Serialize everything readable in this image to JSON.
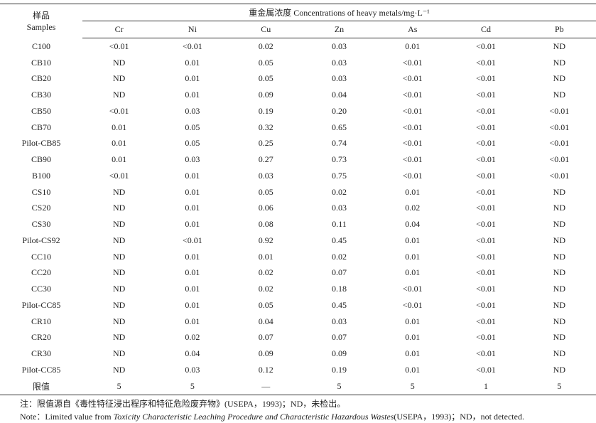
{
  "table": {
    "sample_header": "样品",
    "sample_header_en": "Samples",
    "group_header": "重金属浓度 Concentrations of heavy metals/mg·L⁻¹",
    "columns": [
      "Cr",
      "Ni",
      "Cu",
      "Zn",
      "As",
      "Cd",
      "Pb"
    ],
    "rows": [
      [
        "C100",
        "<0.01",
        "<0.01",
        "0.02",
        "0.03",
        "0.01",
        "<0.01",
        "ND"
      ],
      [
        "CB10",
        "ND",
        "0.01",
        "0.05",
        "0.03",
        "<0.01",
        "<0.01",
        "ND"
      ],
      [
        "CB20",
        "ND",
        "0.01",
        "0.05",
        "0.03",
        "<0.01",
        "<0.01",
        "ND"
      ],
      [
        "CB30",
        "ND",
        "0.01",
        "0.09",
        "0.04",
        "<0.01",
        "<0.01",
        "ND"
      ],
      [
        "CB50",
        "<0.01",
        "0.03",
        "0.19",
        "0.20",
        "<0.01",
        "<0.01",
        "<0.01"
      ],
      [
        "CB70",
        "0.01",
        "0.05",
        "0.32",
        "0.65",
        "<0.01",
        "<0.01",
        "<0.01"
      ],
      [
        "Pilot-CB85",
        "0.01",
        "0.05",
        "0.25",
        "0.74",
        "<0.01",
        "<0.01",
        "<0.01"
      ],
      [
        "CB90",
        "0.01",
        "0.03",
        "0.27",
        "0.73",
        "<0.01",
        "<0.01",
        "<0.01"
      ],
      [
        "B100",
        "<0.01",
        "0.01",
        "0.03",
        "0.75",
        "<0.01",
        "<0.01",
        "<0.01"
      ],
      [
        "CS10",
        "ND",
        "0.01",
        "0.05",
        "0.02",
        "0.01",
        "<0.01",
        "ND"
      ],
      [
        "CS20",
        "ND",
        "0.01",
        "0.06",
        "0.03",
        "0.02",
        "<0.01",
        "ND"
      ],
      [
        "CS30",
        "ND",
        "0.01",
        "0.08",
        "0.11",
        "0.04",
        "<0.01",
        "ND"
      ],
      [
        "Pilot-CS92",
        "ND",
        "<0.01",
        "0.92",
        "0.45",
        "0.01",
        "<0.01",
        "ND"
      ],
      [
        "CC10",
        "ND",
        "0.01",
        "0.01",
        "0.02",
        "0.01",
        "<0.01",
        "ND"
      ],
      [
        "CC20",
        "ND",
        "0.01",
        "0.02",
        "0.07",
        "0.01",
        "<0.01",
        "ND"
      ],
      [
        "CC30",
        "ND",
        "0.01",
        "0.02",
        "0.18",
        "<0.01",
        "<0.01",
        "ND"
      ],
      [
        "Pilot-CC85",
        "ND",
        "0.01",
        "0.05",
        "0.45",
        "<0.01",
        "<0.01",
        "ND"
      ],
      [
        "CR10",
        "ND",
        "0.01",
        "0.04",
        "0.03",
        "0.01",
        "<0.01",
        "ND"
      ],
      [
        "CR20",
        "ND",
        "0.02",
        "0.07",
        "0.07",
        "0.01",
        "<0.01",
        "ND"
      ],
      [
        "CR30",
        "ND",
        "0.04",
        "0.09",
        "0.09",
        "0.01",
        "<0.01",
        "ND"
      ],
      [
        "Pilot-CC85",
        "ND",
        "0.03",
        "0.12",
        "0.19",
        "0.01",
        "<0.01",
        "ND"
      ],
      [
        "限值",
        "5",
        "5",
        "—",
        "5",
        "5",
        "1",
        "5"
      ]
    ]
  },
  "notes": {
    "line1": "注：限值源自《毒性特征浸出程序和特征危险废弃物》(USEPA，1993)；ND，未检出。",
    "line2_start": "Note：Limited value from ",
    "line2_title": "Toxicity Characteristic Leaching Procedure and Characteristic Hazardous Wastes",
    "line2_end": "(USEPA，1993)；ND，not detected."
  }
}
